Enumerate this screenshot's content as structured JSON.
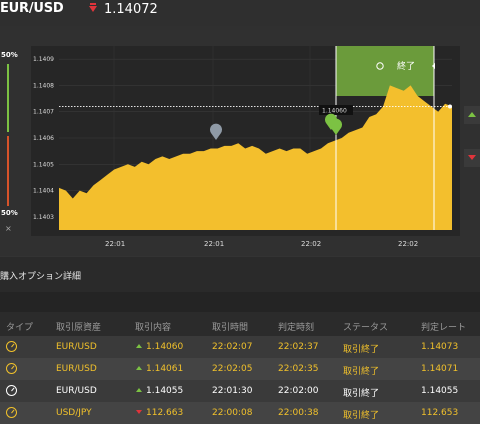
{
  "header": {
    "pair": "EUR/USD",
    "price": "1.14072"
  },
  "gauge": {
    "top_pct": "50%",
    "bottom_pct": "50%",
    "close": "×"
  },
  "chart_data": {
    "type": "area",
    "yticks": [
      "1.1409",
      "1.1408",
      "1.1407",
      "1.1406",
      "1.1405",
      "1.1404",
      "1.1403"
    ],
    "ytick_values": [
      1.1409,
      1.1408,
      1.1407,
      1.1406,
      1.1405,
      1.1404,
      1.1403
    ],
    "xticks": [
      "22:01",
      "22:01",
      "22:02",
      "22:02"
    ],
    "ylim": [
      1.14025,
      1.14095
    ],
    "current_price": 1.14072,
    "entry_label": "1.14060",
    "end_label": "終了",
    "values": [
      1.14041,
      1.1404,
      1.14037,
      1.1404,
      1.14039,
      1.14042,
      1.14044,
      1.14046,
      1.14048,
      1.14049,
      1.1405,
      1.14049,
      1.14051,
      1.1405,
      1.14052,
      1.14053,
      1.14052,
      1.14053,
      1.14054,
      1.14054,
      1.14055,
      1.14055,
      1.14056,
      1.14056,
      1.14057,
      1.14057,
      1.14058,
      1.14056,
      1.14057,
      1.14056,
      1.14054,
      1.14055,
      1.14056,
      1.14055,
      1.14056,
      1.14056,
      1.14054,
      1.14055,
      1.14056,
      1.14058,
      1.14059,
      1.1406,
      1.14062,
      1.14063,
      1.14064,
      1.14068,
      1.14069,
      1.14072,
      1.1408,
      1.14079,
      1.14078,
      1.1408,
      1.14076,
      1.14074,
      1.14072,
      1.1407,
      1.14073,
      1.14072
    ]
  },
  "section": {
    "title": "購入オプション詳細"
  },
  "table": {
    "headers": [
      "タイプ",
      "取引原資産",
      "取引内容",
      "取引時間",
      "判定時刻",
      "ステータス",
      "判定レート"
    ],
    "rows": [
      {
        "pair": "EUR/USD",
        "dir": "up",
        "rate": "1.14060",
        "time": "22:02:07",
        "judge": "22:02:37",
        "status": "取引終了",
        "final": "1.14073"
      },
      {
        "pair": "EUR/USD",
        "dir": "up",
        "rate": "1.14061",
        "time": "22:02:05",
        "judge": "22:02:35",
        "status": "取引終了",
        "final": "1.14071"
      },
      {
        "pair": "EUR/USD",
        "dir": "up",
        "rate": "1.14055",
        "time": "22:01:30",
        "judge": "22:02:00",
        "status": "取引終了",
        "final": "1.14055"
      },
      {
        "pair": "USD/JPY",
        "dir": "down",
        "rate": "112.663",
        "time": "22:00:08",
        "judge": "22:00:38",
        "status": "取引終了",
        "final": "112.653"
      }
    ]
  },
  "colors": {
    "accent": "#f1c12b",
    "up": "#7cc243",
    "down": "#e0343b",
    "area": "#f3bf2d",
    "end_zone": "#6b9b3b"
  }
}
